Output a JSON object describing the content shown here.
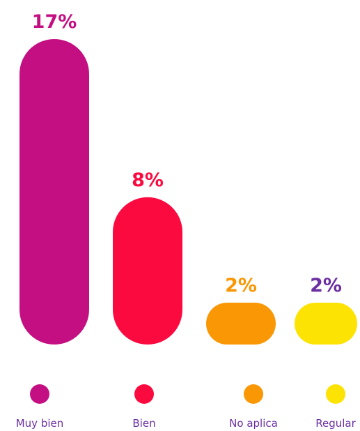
{
  "chart_data": {
    "type": "bar",
    "categories": [
      "Muy bien",
      "Bien",
      "No aplica",
      "Regular"
    ],
    "values": [
      17,
      8,
      2,
      2
    ],
    "value_labels": [
      "17%",
      "8%",
      "2%",
      "2%"
    ],
    "colors": [
      "#c40f83",
      "#fb0a40",
      "#f99705",
      "#fde304"
    ],
    "label_colors": [
      "#c40f83",
      "#fb0a40",
      "#f99705",
      "#6b2fa3"
    ],
    "legend_text_color": "#6b2fa3",
    "ylim": [
      0,
      17
    ],
    "title": "",
    "xlabel": "",
    "ylabel": "",
    "grid": false,
    "legend_placement": "bottom"
  }
}
